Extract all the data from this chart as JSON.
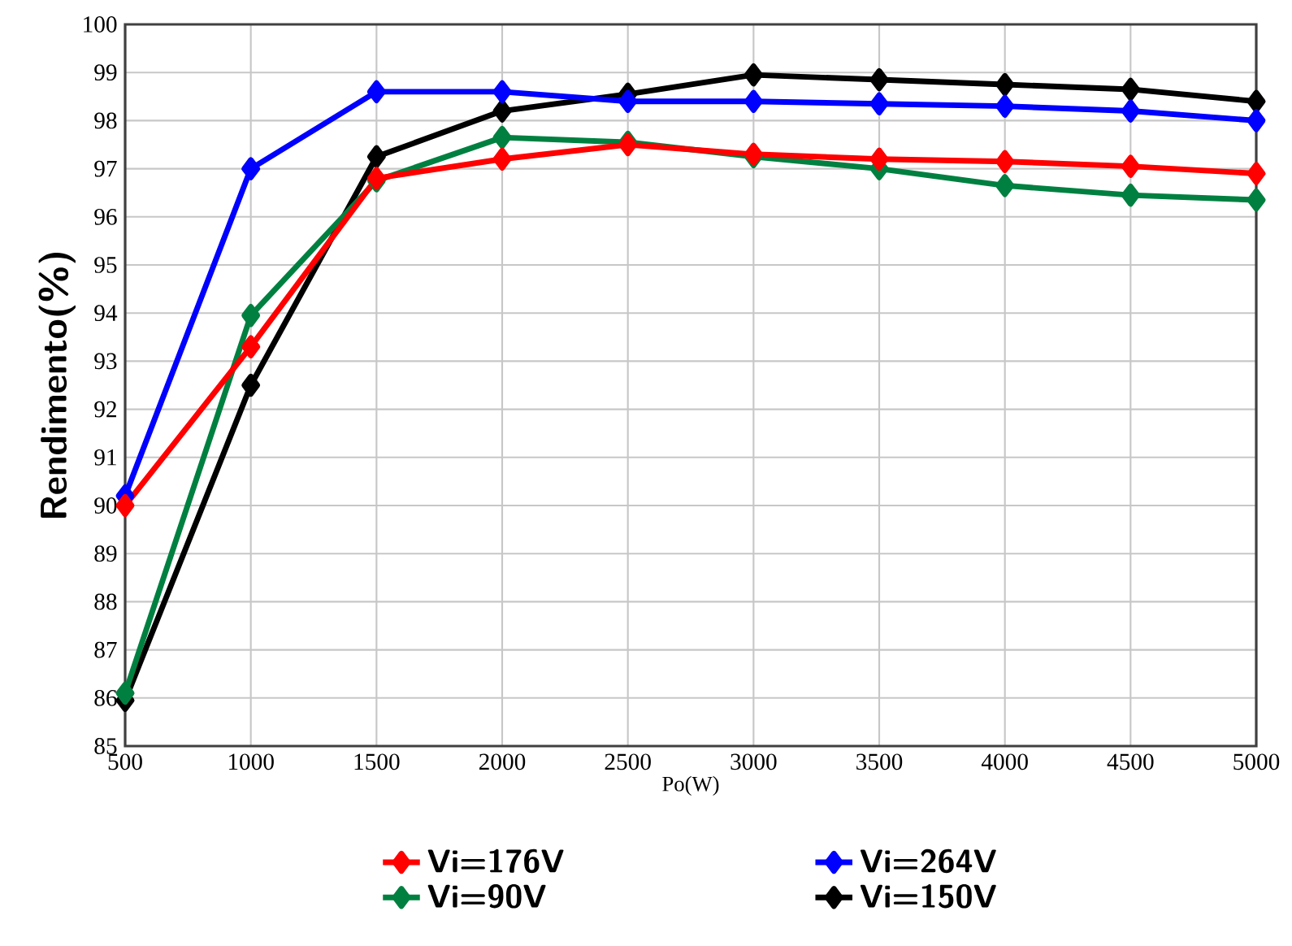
{
  "chart_data": {
    "type": "line",
    "xlabel": "Po(W)",
    "ylabel": "Rendimento(%)",
    "x": [
      500,
      1000,
      1500,
      2000,
      2500,
      3000,
      3500,
      4000,
      4500,
      5000
    ],
    "series": [
      {
        "name": "Vi=176V",
        "color": "#ff0000",
        "values": [
          90.0,
          93.3,
          96.8,
          97.2,
          97.5,
          97.3,
          97.2,
          97.15,
          97.05,
          96.9
        ]
      },
      {
        "name": "Vi=264V",
        "color": "#0000ff",
        "values": [
          90.2,
          97.0,
          98.6,
          98.6,
          98.4,
          98.4,
          98.35,
          98.3,
          98.2,
          98.0
        ]
      },
      {
        "name": "Vi=90V",
        "color": "#008040",
        "values": [
          86.1,
          93.95,
          96.75,
          97.65,
          97.55,
          97.25,
          97.0,
          96.65,
          96.45,
          96.35
        ]
      },
      {
        "name": "Vi=150V",
        "color": "#000000",
        "values": [
          85.95,
          92.5,
          97.25,
          98.2,
          98.55,
          98.95,
          98.85,
          98.75,
          98.65,
          98.4
        ]
      }
    ],
    "xlim": [
      500,
      5000
    ],
    "ylim": [
      85,
      100
    ],
    "xticks": [
      500,
      1000,
      1500,
      2000,
      2500,
      3000,
      3500,
      4000,
      4500,
      5000
    ],
    "yticks": [
      85,
      86,
      87,
      88,
      89,
      90,
      91,
      92,
      93,
      94,
      95,
      96,
      97,
      98,
      99,
      100
    ],
    "grid": true,
    "legend": "bottom",
    "marker": "diamond",
    "line_style": "solid"
  }
}
